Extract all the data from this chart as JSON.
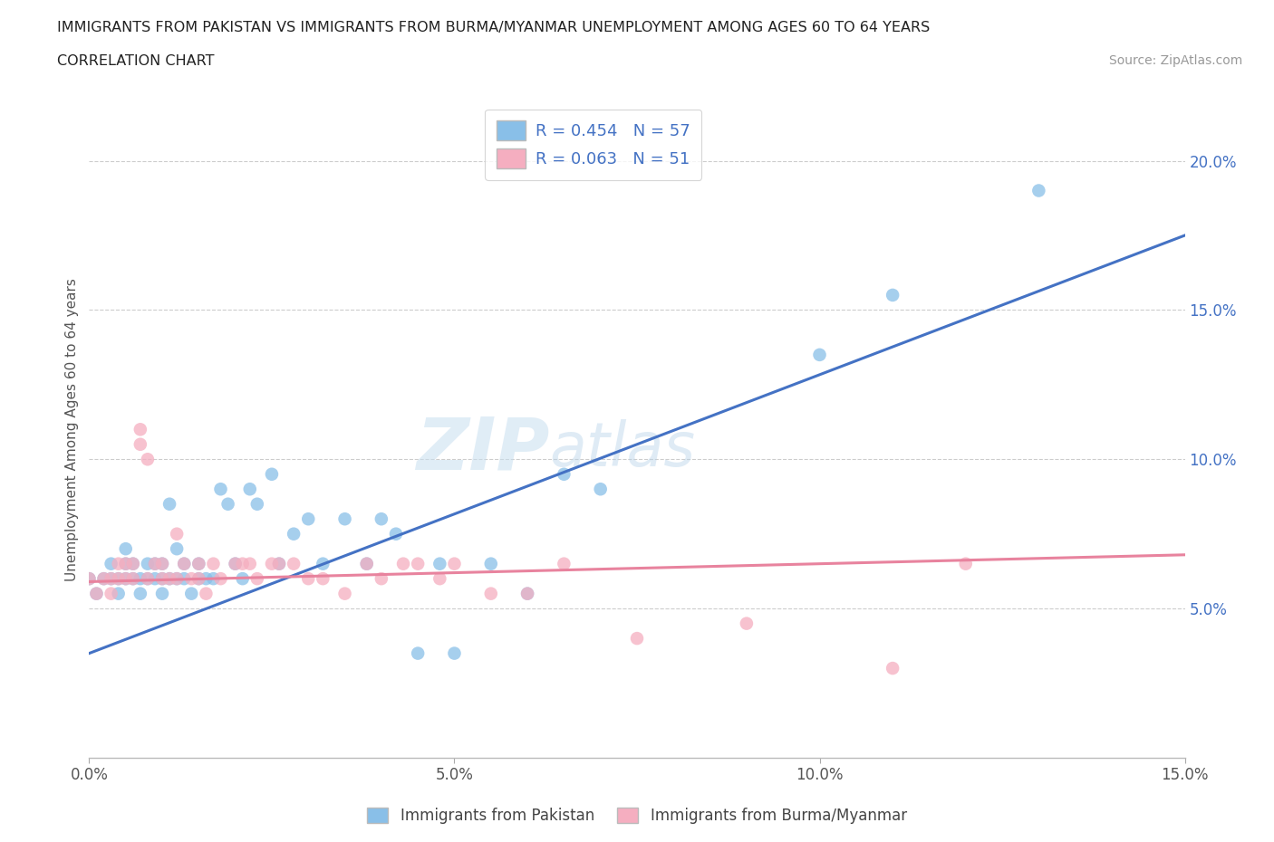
{
  "title_line1": "IMMIGRANTS FROM PAKISTAN VS IMMIGRANTS FROM BURMA/MYANMAR UNEMPLOYMENT AMONG AGES 60 TO 64 YEARS",
  "title_line2": "CORRELATION CHART",
  "source_text": "Source: ZipAtlas.com",
  "ylabel": "Unemployment Among Ages 60 to 64 years",
  "xlim": [
    0.0,
    0.15
  ],
  "ylim": [
    0.0,
    0.22
  ],
  "xtick_labels": [
    "0.0%",
    "5.0%",
    "10.0%",
    "15.0%"
  ],
  "xtick_vals": [
    0.0,
    0.05,
    0.1,
    0.15
  ],
  "ytick_labels": [
    "5.0%",
    "10.0%",
    "15.0%",
    "20.0%"
  ],
  "ytick_vals": [
    0.05,
    0.1,
    0.15,
    0.2
  ],
  "pakistan_color": "#89bfe8",
  "burma_color": "#f5aec0",
  "pakistan_line_color": "#4472C4",
  "burma_line_color": "#e8839e",
  "pakistan_R": 0.454,
  "pakistan_N": 57,
  "burma_R": 0.063,
  "burma_N": 51,
  "watermark": "ZIPatlas",
  "pakistan_scatter_x": [
    0.0,
    0.001,
    0.002,
    0.003,
    0.003,
    0.004,
    0.004,
    0.005,
    0.005,
    0.005,
    0.006,
    0.006,
    0.007,
    0.007,
    0.008,
    0.008,
    0.009,
    0.009,
    0.01,
    0.01,
    0.01,
    0.011,
    0.011,
    0.012,
    0.012,
    0.013,
    0.013,
    0.014,
    0.015,
    0.015,
    0.016,
    0.017,
    0.018,
    0.019,
    0.02,
    0.021,
    0.022,
    0.023,
    0.025,
    0.026,
    0.028,
    0.03,
    0.032,
    0.035,
    0.038,
    0.04,
    0.042,
    0.045,
    0.048,
    0.05,
    0.055,
    0.06,
    0.065,
    0.07,
    0.1,
    0.11,
    0.13
  ],
  "pakistan_scatter_y": [
    0.06,
    0.055,
    0.06,
    0.065,
    0.06,
    0.055,
    0.06,
    0.06,
    0.065,
    0.07,
    0.06,
    0.065,
    0.06,
    0.055,
    0.06,
    0.065,
    0.06,
    0.065,
    0.055,
    0.06,
    0.065,
    0.06,
    0.085,
    0.06,
    0.07,
    0.06,
    0.065,
    0.055,
    0.06,
    0.065,
    0.06,
    0.06,
    0.09,
    0.085,
    0.065,
    0.06,
    0.09,
    0.085,
    0.095,
    0.065,
    0.075,
    0.08,
    0.065,
    0.08,
    0.065,
    0.08,
    0.075,
    0.035,
    0.065,
    0.035,
    0.065,
    0.055,
    0.095,
    0.09,
    0.135,
    0.155,
    0.19
  ],
  "burma_scatter_x": [
    0.0,
    0.001,
    0.002,
    0.003,
    0.003,
    0.004,
    0.004,
    0.005,
    0.005,
    0.006,
    0.006,
    0.007,
    0.007,
    0.008,
    0.008,
    0.009,
    0.01,
    0.01,
    0.011,
    0.012,
    0.012,
    0.013,
    0.014,
    0.015,
    0.015,
    0.016,
    0.017,
    0.018,
    0.02,
    0.021,
    0.022,
    0.023,
    0.025,
    0.026,
    0.028,
    0.03,
    0.032,
    0.035,
    0.038,
    0.04,
    0.043,
    0.045,
    0.048,
    0.05,
    0.055,
    0.06,
    0.065,
    0.075,
    0.09,
    0.11,
    0.12
  ],
  "burma_scatter_y": [
    0.06,
    0.055,
    0.06,
    0.055,
    0.06,
    0.06,
    0.065,
    0.06,
    0.065,
    0.06,
    0.065,
    0.11,
    0.105,
    0.1,
    0.06,
    0.065,
    0.06,
    0.065,
    0.06,
    0.075,
    0.06,
    0.065,
    0.06,
    0.065,
    0.06,
    0.055,
    0.065,
    0.06,
    0.065,
    0.065,
    0.065,
    0.06,
    0.065,
    0.065,
    0.065,
    0.06,
    0.06,
    0.055,
    0.065,
    0.06,
    0.065,
    0.065,
    0.06,
    0.065,
    0.055,
    0.055,
    0.065,
    0.04,
    0.045,
    0.03,
    0.065
  ]
}
